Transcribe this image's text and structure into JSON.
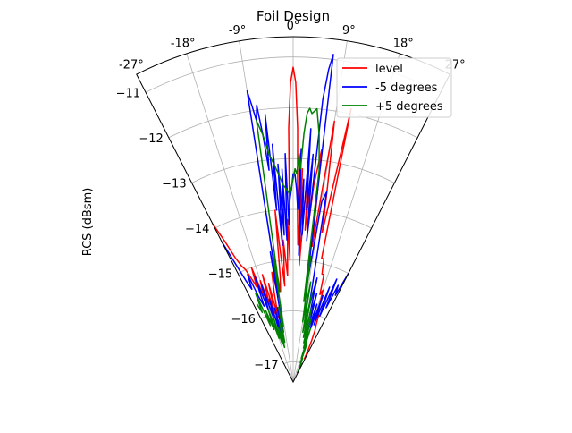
{
  "chart_data": {
    "type": "polar-line",
    "title": "Foil Design",
    "ylabel": "RCS (dBsm)",
    "theta_range_deg": [
      -27,
      27
    ],
    "theta_zero": "top",
    "theta_direction": "clockwise",
    "r_range": [
      -17.4,
      -10.6
    ],
    "r_ticks": [
      -11,
      -12,
      -13,
      -14,
      -15,
      -16,
      -17
    ],
    "r_tick_labels": [
      "−11",
      "−12",
      "−13",
      "−14",
      "−15",
      "−16",
      "−17"
    ],
    "theta_ticks": [
      -27,
      -18,
      -9,
      0,
      9,
      18,
      27
    ],
    "theta_tick_labels": [
      "-27°",
      "-18°",
      "-9°",
      "0°",
      "9°",
      "18°",
      "27°"
    ],
    "grid": true,
    "legend_position": "top-right",
    "series": [
      {
        "name": "level",
        "color": "#ff0000",
        "points": [
          [
            -27,
            -13.9
          ],
          [
            -26,
            -14.3
          ],
          [
            -25,
            -14.7
          ],
          [
            -24,
            -14.9
          ],
          [
            -23,
            -15.0
          ],
          [
            -22,
            -15.2
          ],
          [
            -21,
            -15.4
          ],
          [
            -20,
            -15.0
          ],
          [
            -19,
            -15.6
          ],
          [
            -18,
            -15.3
          ],
          [
            -17,
            -15.8
          ],
          [
            -16,
            -15.2
          ],
          [
            -15,
            -16.0
          ],
          [
            -14,
            -15.4
          ],
          [
            -13,
            -16.1
          ],
          [
            -12,
            -15.6
          ],
          [
            -11,
            -15.2
          ],
          [
            -10,
            -15.6
          ],
          [
            -9,
            -14.8
          ],
          [
            -8,
            -15.6
          ],
          [
            -7,
            -15.3
          ],
          [
            -6,
            -14.0
          ],
          [
            -5,
            -15.5
          ],
          [
            -4,
            -14.6
          ],
          [
            -3,
            -15.3
          ],
          [
            -2,
            -14.2
          ],
          [
            -1.5,
            -15.0
          ],
          [
            -1,
            -12.4
          ],
          [
            -0.5,
            -11.5
          ],
          [
            0,
            -11.2
          ],
          [
            0.5,
            -11.5
          ],
          [
            1,
            -12.4
          ],
          [
            1.5,
            -14.1
          ],
          [
            2,
            -14.7
          ],
          [
            2.5,
            -13.2
          ],
          [
            3,
            -15.1
          ],
          [
            3.5,
            -14.3
          ],
          [
            4,
            -13.0
          ],
          [
            4.5,
            -14.4
          ],
          [
            5,
            -13.2
          ],
          [
            5.5,
            -14.4
          ],
          [
            6,
            -13.5
          ],
          [
            7,
            -12.8
          ],
          [
            8,
            -14.7
          ],
          [
            9,
            -12.2
          ],
          [
            10,
            -13.5
          ],
          [
            11,
            -14.4
          ],
          [
            12,
            -11.9
          ],
          [
            13,
            -14.9
          ],
          [
            14,
            -14.9
          ],
          [
            15,
            -15.2
          ],
          [
            16,
            -15.2
          ],
          [
            17,
            -15.6
          ],
          [
            18,
            -15.5
          ],
          [
            19,
            -15.8
          ],
          [
            20,
            -15.9
          ],
          [
            21,
            -16.0
          ],
          [
            22,
            -16.2
          ],
          [
            23,
            -16.3
          ],
          [
            24,
            -16.5
          ],
          [
            25,
            -16.7
          ],
          [
            26,
            -16.9
          ]
        ]
      },
      {
        "name": "-5 degrees",
        "color": "#0000ff",
        "points": [
          [
            -27,
            -14.3
          ],
          [
            -25,
            -15.2
          ],
          [
            -24,
            -15.4
          ],
          [
            -23,
            -15.1
          ],
          [
            -22,
            -15.6
          ],
          [
            -21,
            -15.8
          ],
          [
            -20,
            -15.2
          ],
          [
            -19,
            -15.9
          ],
          [
            -18,
            -15.4
          ],
          [
            -17,
            -16.1
          ],
          [
            -16,
            -15.7
          ],
          [
            -15,
            -16.4
          ],
          [
            -14,
            -15.9
          ],
          [
            -13,
            -16.6
          ],
          [
            -12,
            -15.9
          ],
          [
            -11,
            -16.4
          ],
          [
            -10,
            -14.8
          ],
          [
            -9.5,
            -15.7
          ],
          [
            -9,
            -11.6
          ],
          [
            -8.5,
            -11.9
          ],
          [
            -8,
            -12.2
          ],
          [
            -7.5,
            -11.9
          ],
          [
            -7,
            -12.5
          ],
          [
            -6.5,
            -13.2
          ],
          [
            -6,
            -12.1
          ],
          [
            -5.5,
            -14.0
          ],
          [
            -5,
            -12.7
          ],
          [
            -4.5,
            -14.7
          ],
          [
            -4,
            -13.1
          ],
          [
            -3.5,
            -14.5
          ],
          [
            -3,
            -13.2
          ],
          [
            -2.5,
            -14.6
          ],
          [
            -2,
            -12.9
          ],
          [
            -1.5,
            -14.3
          ],
          [
            -1,
            -13.8
          ],
          [
            -0.5,
            -13.6
          ],
          [
            0,
            -13.3
          ],
          [
            0.5,
            -13.3
          ],
          [
            1,
            -13.6
          ],
          [
            1.5,
            -14.0
          ],
          [
            2,
            -12.8
          ],
          [
            2.5,
            -14.9
          ],
          [
            3,
            -13.4
          ],
          [
            3.5,
            -14.5
          ],
          [
            4,
            -12.4
          ],
          [
            4.5,
            -14.0
          ],
          [
            5,
            -12.9
          ],
          [
            5.5,
            -14.6
          ],
          [
            6,
            -11.8
          ],
          [
            6.5,
            -11.2
          ],
          [
            7,
            -10.9
          ],
          [
            7.5,
            -14.5
          ],
          [
            8,
            -15.5
          ],
          [
            9,
            -13.8
          ],
          [
            10,
            -13.6
          ],
          [
            11,
            -15.2
          ],
          [
            12,
            -15.9
          ],
          [
            13,
            -15.3
          ],
          [
            14,
            -16.1
          ],
          [
            15,
            -15.6
          ],
          [
            16,
            -16.4
          ],
          [
            17,
            -15.8
          ],
          [
            18,
            -16.3
          ],
          [
            19,
            -15.6
          ],
          [
            20,
            -16.2
          ],
          [
            21,
            -15.4
          ],
          [
            22,
            -16.0
          ],
          [
            23,
            -15.2
          ],
          [
            24,
            -15.8
          ],
          [
            25,
            -15.3
          ],
          [
            26,
            -15.5
          ],
          [
            27,
            -15.0
          ]
        ]
      },
      {
        "name": "+5 degrees",
        "color": "#008000",
        "points": [
          [
            -25,
            -15.7
          ],
          [
            -24,
            -15.9
          ],
          [
            -23,
            -15.5
          ],
          [
            -22,
            -16.2
          ],
          [
            -21,
            -15.9
          ],
          [
            -20,
            -16.3
          ],
          [
            -19,
            -15.9
          ],
          [
            -18,
            -16.5
          ],
          [
            -17,
            -16.1
          ],
          [
            -16,
            -16.6
          ],
          [
            -15,
            -16.3
          ],
          [
            -14,
            -16.7
          ],
          [
            -13,
            -16.2
          ],
          [
            -12,
            -16.6
          ],
          [
            -11,
            -15.9
          ],
          [
            -10,
            -16.3
          ],
          [
            -9,
            -14.9
          ],
          [
            -8.5,
            -15.6
          ],
          [
            -8,
            -12.2
          ],
          [
            -7,
            -12.5
          ],
          [
            -6,
            -12.9
          ],
          [
            -5,
            -13.1
          ],
          [
            -4,
            -13.3
          ],
          [
            -3,
            -13.5
          ],
          [
            -2,
            -13.6
          ],
          [
            -1,
            -13.7
          ],
          [
            0,
            -13.4
          ],
          [
            0.5,
            -13.2
          ],
          [
            1,
            -13.3
          ],
          [
            1.5,
            -12.9
          ],
          [
            2,
            -13.2
          ],
          [
            2.5,
            -12.5
          ],
          [
            3,
            -12.1
          ],
          [
            3.5,
            -12.0
          ],
          [
            4,
            -12.1
          ],
          [
            5,
            -12.0
          ],
          [
            6,
            -12.5
          ],
          [
            7,
            -13.2
          ],
          [
            7.5,
            -15.8
          ],
          [
            8,
            -14.9
          ],
          [
            9,
            -16.2
          ],
          [
            10,
            -15.4
          ],
          [
            11,
            -16.4
          ],
          [
            12,
            -15.6
          ],
          [
            13,
            -16.5
          ],
          [
            14,
            -15.9
          ],
          [
            15,
            -16.6
          ],
          [
            16,
            -16.1
          ],
          [
            17,
            -16.7
          ],
          [
            18,
            -16.3
          ],
          [
            19,
            -16.9
          ],
          [
            20,
            -16.6
          ],
          [
            21,
            -17.0
          ],
          [
            22,
            -16.9
          ],
          [
            23,
            -17.1
          ],
          [
            24,
            -17.0
          ],
          [
            25,
            -17.2
          ],
          [
            26,
            -17.1
          ]
        ]
      }
    ]
  }
}
